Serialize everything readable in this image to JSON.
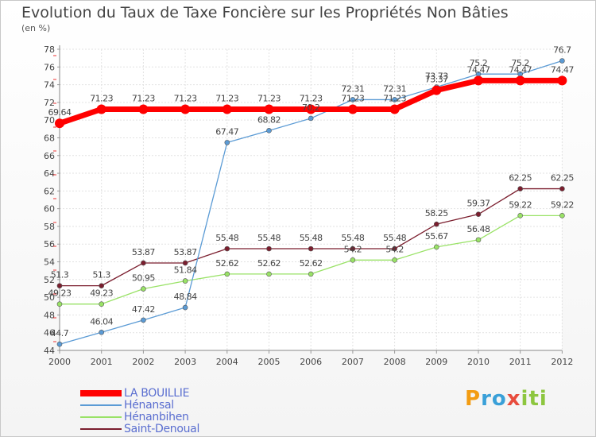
{
  "chart_data": {
    "type": "line",
    "title": "Evolution du Taux de Taxe Foncière sur les Propriétés Non Bâties",
    "ylabel": "(en %)",
    "xlabel": "",
    "categories": [
      "2000",
      "2001",
      "2002",
      "2003",
      "2004",
      "2005",
      "2006",
      "2007",
      "2008",
      "2009",
      "2010",
      "2011",
      "2012"
    ],
    "ylim": [
      44,
      78
    ],
    "yticks": [
      44,
      46,
      48,
      50,
      52,
      54,
      56,
      58,
      60,
      62,
      64,
      66,
      68,
      70,
      72,
      74,
      76,
      78
    ],
    "grid": true,
    "legend_position": "bottom-left",
    "series": [
      {
        "name": "LA BOUILLIE",
        "color": "#ff0000",
        "values": [
          69.64,
          71.23,
          71.23,
          71.23,
          71.23,
          71.23,
          71.23,
          71.23,
          71.23,
          73.37,
          74.47,
          74.47,
          74.47
        ],
        "labels": [
          "69.64",
          "71.23",
          "71.23",
          "71.23",
          "71.23",
          "71.23",
          "71.23",
          "71.23",
          "71.23",
          "73.37",
          "74.47",
          "74.47",
          "74.47"
        ]
      },
      {
        "name": "Hénansal",
        "color": "#5b9bd5",
        "values": [
          44.7,
          46.04,
          47.42,
          48.84,
          67.47,
          68.82,
          70.2,
          72.31,
          72.31,
          73.73,
          75.2,
          75.2,
          76.7
        ],
        "labels": [
          "44.7",
          "46.04",
          "47.42",
          "48.84",
          "67.47",
          "68.82",
          "70.2",
          "72.31",
          "72.31",
          "73.73",
          "75.2",
          "75.2",
          "76.7"
        ]
      },
      {
        "name": "Hénanbihen",
        "color": "#99e266",
        "values": [
          49.23,
          49.23,
          50.95,
          51.84,
          52.62,
          52.62,
          52.62,
          54.2,
          54.2,
          55.67,
          56.48,
          59.22,
          59.22
        ],
        "labels": [
          "49.23",
          "49.23",
          "50.95",
          "51.84",
          "52.62",
          "52.62",
          "52.62",
          "54.2",
          "54.2",
          "55.67",
          "56.48",
          "59.22",
          "59.22"
        ]
      },
      {
        "name": "Saint-Denoual",
        "color": "#7b1e2e",
        "values": [
          51.3,
          51.3,
          53.87,
          53.87,
          55.48,
          55.48,
          55.48,
          55.48,
          55.48,
          58.25,
          59.37,
          62.25,
          62.25
        ],
        "labels": [
          "51.3",
          "51.3",
          "53.87",
          "53.87",
          "55.48",
          "55.48",
          "55.48",
          "55.48",
          "55.48",
          "58.25",
          "59.37",
          "62.25",
          "62.25"
        ]
      }
    ]
  },
  "brand": {
    "name": "Proxiti",
    "letters": [
      "P",
      "r",
      "o",
      "x",
      "i",
      "t",
      "i"
    ],
    "colors": [
      "#f39c12",
      "#3aa0d8",
      "#3aa0d8",
      "#e84c3d",
      "#8dc63f",
      "#8dc63f",
      "#8dc63f"
    ]
  }
}
